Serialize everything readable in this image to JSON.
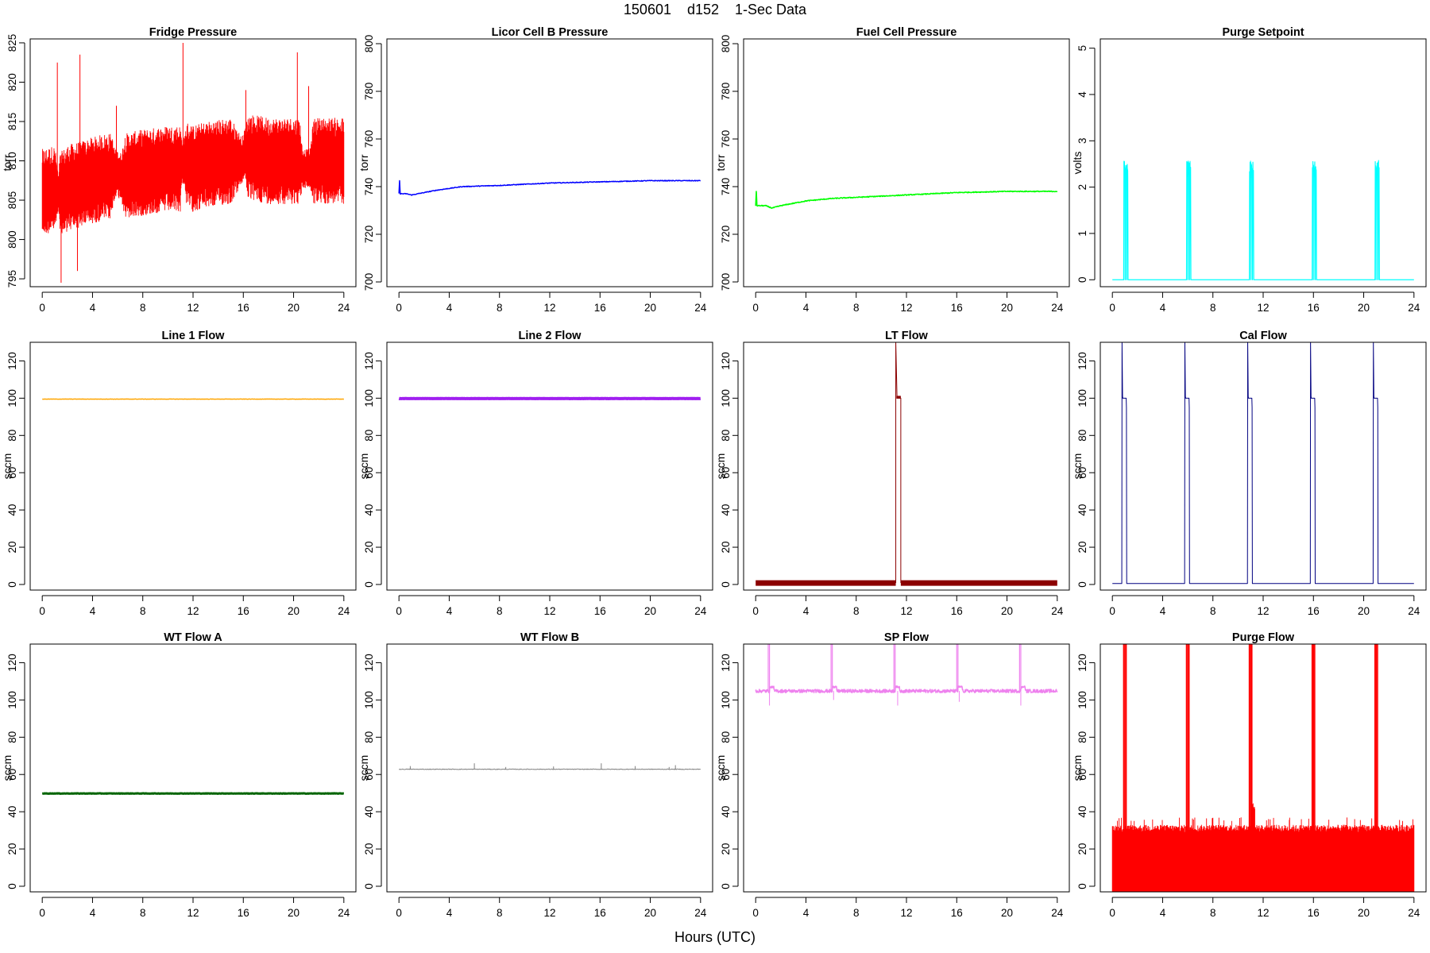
{
  "title": "150601    d152    1-Sec Data",
  "xlabel": "Hours (UTC)",
  "chart_data": [
    {
      "id": "fridge",
      "type": "line",
      "title": "Fridge Pressure",
      "ylabel": "torr",
      "color": "#ff0000",
      "xlim": [
        0,
        24
      ],
      "ylim": [
        794,
        825.5
      ],
      "xticks": [
        0,
        4,
        8,
        12,
        16,
        20,
        24
      ],
      "yticks": [
        795,
        800,
        805,
        810,
        815,
        820,
        825
      ],
      "mode": "noise",
      "style": "band",
      "x": [
        0,
        1,
        1.3,
        1.4,
        2,
        3,
        4,
        5,
        5.5,
        5.8,
        6.3,
        6.6,
        8,
        10,
        11,
        11.1,
        11.3,
        11.5,
        12,
        13,
        15,
        15.9,
        16.1,
        16.4,
        18,
        20.5,
        20.7,
        21.3,
        21.6,
        23,
        24
      ],
      "center": [
        806,
        806.5,
        806,
        805.5,
        806.5,
        807,
        807.5,
        808,
        808,
        808.5,
        808,
        808,
        808.5,
        809,
        809,
        810,
        810,
        809.5,
        809,
        809.5,
        810,
        810,
        811,
        810.5,
        810,
        810,
        809,
        809,
        810,
        810,
        810
      ],
      "amp": [
        5.5,
        5.5,
        2,
        5.5,
        5.5,
        5.5,
        5.5,
        5.5,
        5.5,
        3,
        3,
        5.5,
        5.5,
        5.5,
        5.5,
        3,
        3,
        5.5,
        5.5,
        5.5,
        5.5,
        3,
        3,
        5.5,
        5.5,
        5.5,
        2.5,
        2.5,
        5.5,
        5.5,
        5.5
      ],
      "spikes": [
        [
          1.2,
          822.5
        ],
        [
          3.0,
          823.5
        ],
        [
          5.9,
          817
        ],
        [
          11.2,
          825
        ],
        [
          16.2,
          819
        ],
        [
          20.3,
          823.8
        ],
        [
          21.2,
          819.5
        ],
        [
          1.5,
          794.5
        ],
        [
          2.8,
          796
        ]
      ]
    },
    {
      "id": "licor",
      "type": "line",
      "title": "Licor Cell B Pressure",
      "ylabel": "torr",
      "color": "#0000ff",
      "xlim": [
        0,
        24
      ],
      "ylim": [
        698,
        802
      ],
      "xticks": [
        0,
        4,
        8,
        12,
        16,
        20,
        24
      ],
      "yticks": [
        700,
        720,
        740,
        760,
        780,
        800
      ],
      "mode": "smooth",
      "style": "line",
      "lw": 1.5,
      "noise": 0.3,
      "x": [
        0,
        0.05,
        0.1,
        0.6,
        1,
        1.5,
        3,
        5,
        8,
        12,
        16,
        20,
        24
      ],
      "y": [
        737,
        742.5,
        737,
        737,
        736.5,
        737,
        738.5,
        740,
        740.5,
        741.5,
        742,
        742.5,
        742.5
      ]
    },
    {
      "id": "fuel",
      "type": "line",
      "title": "Fuel Cell Pressure",
      "ylabel": "torr",
      "color": "#00ff00",
      "xlim": [
        0,
        24
      ],
      "ylim": [
        698,
        802
      ],
      "xticks": [
        0,
        4,
        8,
        12,
        16,
        20,
        24
      ],
      "yticks": [
        700,
        720,
        740,
        760,
        780,
        800
      ],
      "mode": "smooth",
      "style": "line",
      "lw": 1.6,
      "noise": 0.35,
      "x": [
        0,
        0.05,
        0.1,
        0.8,
        1.3,
        2,
        4,
        6,
        8,
        12,
        16,
        20,
        24
      ],
      "y": [
        732,
        738,
        732,
        732,
        731,
        732,
        734,
        735,
        735.5,
        736.5,
        737.5,
        738,
        738
      ]
    },
    {
      "id": "purge_sp",
      "type": "line",
      "title": "Purge Setpoint",
      "ylabel": "volts",
      "color": "#00ffff",
      "xlim": [
        0,
        24
      ],
      "ylim": [
        -0.15,
        5.2
      ],
      "xticks": [
        0,
        4,
        8,
        12,
        16,
        20,
        24
      ],
      "yticks": [
        0,
        1,
        2,
        3,
        4,
        5
      ],
      "mode": "pulses",
      "style": "line",
      "lw": 1.2,
      "baseline": 0,
      "pulse_level": 2.45,
      "pulse_width": 0.3,
      "pulses": [
        0.9,
        5.9,
        10.9,
        15.9,
        20.9
      ]
    },
    {
      "id": "line1",
      "type": "line",
      "title": "Line 1 Flow",
      "ylabel": "sccm",
      "color": "#ffa500",
      "xlim": [
        0,
        24
      ],
      "ylim": [
        -3,
        130
      ],
      "xticks": [
        0,
        4,
        8,
        12,
        16,
        20,
        24
      ],
      "yticks": [
        0,
        20,
        40,
        60,
        80,
        100,
        120
      ],
      "mode": "flat",
      "style": "line",
      "lw": 1.5,
      "noise": 0.15,
      "value": 99.5
    },
    {
      "id": "line2",
      "type": "line",
      "title": "Line 2 Flow",
      "ylabel": "sccm",
      "color": "#a020f0",
      "xlim": [
        0,
        24
      ],
      "ylim": [
        -3,
        130
      ],
      "xticks": [
        0,
        4,
        8,
        12,
        16,
        20,
        24
      ],
      "yticks": [
        0,
        20,
        40,
        60,
        80,
        100,
        120
      ],
      "mode": "flat",
      "style": "line",
      "lw": 4,
      "noise": 0.1,
      "value": 99.8
    },
    {
      "id": "lt",
      "type": "line",
      "title": "LT Flow",
      "ylabel": "sccm",
      "color": "#8b0000",
      "xlim": [
        0,
        24
      ],
      "ylim": [
        -3,
        130
      ],
      "xticks": [
        0,
        4,
        8,
        12,
        16,
        20,
        24
      ],
      "yticks": [
        0,
        20,
        40,
        60,
        80,
        100,
        120
      ],
      "mode": "segments",
      "style": "line",
      "segments": [
        {
          "x": [
            0,
            11.15
          ],
          "y": [
            0.8,
            0.8
          ],
          "lw": 7
        },
        {
          "x": [
            11.55,
            24
          ],
          "y": [
            0.8,
            0.8
          ],
          "lw": 7
        },
        {
          "x": [
            11.15,
            11.15,
            11.25,
            11.25,
            11.55,
            11.55
          ],
          "y": [
            0.8,
            130,
            100,
            100,
            100,
            0.8
          ],
          "lw": 1
        },
        {
          "x": [
            11.2,
            11.55
          ],
          "y": [
            100.5,
            100.5
          ],
          "lw": 3.5
        }
      ]
    },
    {
      "id": "cal",
      "type": "line",
      "title": "Cal Flow",
      "ylabel": "sccm",
      "color": "#000080",
      "xlim": [
        0,
        24
      ],
      "ylim": [
        -3,
        130
      ],
      "xticks": [
        0,
        4,
        8,
        12,
        16,
        20,
        24
      ],
      "yticks": [
        0,
        20,
        40,
        60,
        80,
        100,
        120
      ],
      "mode": "calpulses",
      "style": "line",
      "lw": 1,
      "baseline": 0.5,
      "pulse_level": 100,
      "pulse_width": 0.35,
      "spike_value": 130,
      "pulses": [
        0.75,
        5.75,
        10.75,
        15.75,
        20.75
      ]
    },
    {
      "id": "wta",
      "type": "line",
      "title": "WT Flow A",
      "ylabel": "sccm",
      "color": "#006400",
      "xlim": [
        0,
        24
      ],
      "ylim": [
        -3,
        130
      ],
      "xticks": [
        0,
        4,
        8,
        12,
        16,
        20,
        24
      ],
      "yticks": [
        0,
        20,
        40,
        60,
        80,
        100,
        120
      ],
      "mode": "flat",
      "style": "line",
      "lw": 3,
      "noise": 0.2,
      "value": 49.8
    },
    {
      "id": "wtb",
      "type": "line",
      "title": "WT Flow B",
      "ylabel": "sccm",
      "color": "#808080",
      "xlim": [
        0,
        24
      ],
      "ylim": [
        -3,
        130
      ],
      "xticks": [
        0,
        4,
        8,
        12,
        16,
        20,
        24
      ],
      "yticks": [
        0,
        20,
        40,
        60,
        80,
        100,
        120
      ],
      "mode": "flat",
      "style": "line",
      "lw": 1,
      "noise": 0.35,
      "value": 62.8,
      "spikes": [
        [
          0.9,
          64.5
        ],
        [
          6,
          66
        ],
        [
          8.5,
          64
        ],
        [
          12.3,
          64.3
        ],
        [
          16.1,
          66
        ],
        [
          18.8,
          64.5
        ],
        [
          21.5,
          64
        ],
        [
          22,
          65
        ]
      ]
    },
    {
      "id": "sp",
      "type": "line",
      "title": "SP Flow",
      "ylabel": "sccm",
      "color": "#ee82ee",
      "xlim": [
        0,
        24
      ],
      "ylim": [
        -3,
        130
      ],
      "xticks": [
        0,
        4,
        8,
        12,
        16,
        20,
        24
      ],
      "yticks": [
        0,
        20,
        40,
        60,
        80,
        100,
        120
      ],
      "mode": "sp",
      "style": "line",
      "lw": 1.5,
      "baseline": 104.8,
      "step": 107,
      "noise": 0.9,
      "pulses": [
        1.0,
        6.0,
        11.0,
        16.0,
        21.0
      ],
      "dips": [
        [
          1.1,
          97
        ],
        [
          6.2,
          100
        ],
        [
          11.3,
          97
        ],
        [
          16.2,
          99
        ],
        [
          21.1,
          97
        ]
      ]
    },
    {
      "id": "purge_flow",
      "type": "line",
      "title": "Purge Flow",
      "ylabel": "sccm",
      "color": "#ff0000",
      "xlim": [
        0,
        24
      ],
      "ylim": [
        -3,
        130
      ],
      "xticks": [
        0,
        4,
        8,
        12,
        16,
        20,
        24
      ],
      "yticks": [
        0,
        20,
        40,
        60,
        80,
        100,
        120
      ],
      "mode": "purgeflow",
      "style": "band",
      "low": -3,
      "high": 32,
      "top_spikes": 37,
      "pulses": [
        0.9,
        5.9,
        10.9,
        15.9,
        20.9
      ],
      "bump": [
        11.2,
        45
      ]
    }
  ]
}
